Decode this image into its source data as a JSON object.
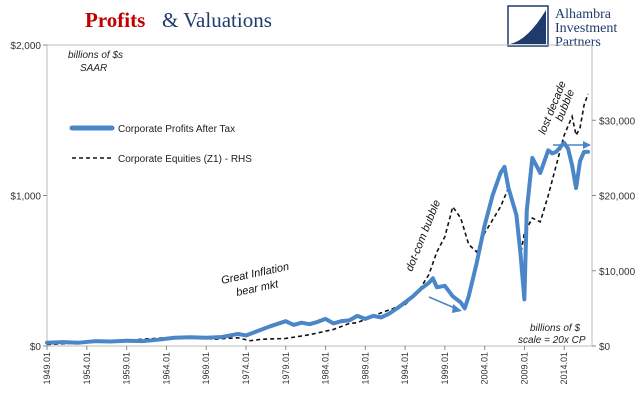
{
  "title": {
    "part1": "Profits",
    "part2": "& Valuations"
  },
  "brand": {
    "line1": "Alhambra",
    "line2": "Investment",
    "line3": "Partners"
  },
  "colors": {
    "profits": "#4a86c8",
    "equities": "#111111",
    "title_red": "#c00000",
    "brand_blue": "#1f3b6e"
  },
  "chart_data": {
    "type": "line",
    "title": "Profits & Valuations",
    "grid": false,
    "legend_position": "left",
    "left_axis": {
      "ticks": [
        "$0",
        "$1,000",
        "$2,000"
      ],
      "ylim": [
        0,
        2000
      ],
      "unit_note": [
        "billions of $s",
        "SAAR"
      ]
    },
    "right_axis": {
      "ticks": [
        "$0",
        "$10,000",
        "$20,000",
        "$30,000"
      ],
      "ylim": [
        0,
        40000
      ],
      "unit_note": [
        "billions of $",
        "scale = 20x CP"
      ]
    },
    "x_tick_labels": [
      "1949.01",
      "1954.01",
      "1959.01",
      "1964.01",
      "1969.01",
      "1974.01",
      "1979.01",
      "1984.01",
      "1989.01",
      "1994.01",
      "1999.01",
      "2004.01",
      "2009.01",
      "2014.01"
    ],
    "xlim": [
      1949,
      2017.5
    ],
    "series": [
      {
        "name": "Corporate Profits After Tax",
        "axis": "left",
        "x": [
          1949,
          1951,
          1953,
          1955,
          1957,
          1959,
          1961,
          1963,
          1965,
          1967,
          1969,
          1971,
          1973,
          1974,
          1975,
          1977,
          1979,
          1980,
          1981,
          1982,
          1983,
          1984,
          1985,
          1986,
          1987,
          1988,
          1989,
          1990,
          1991,
          1992,
          1993,
          1994,
          1995,
          1996,
          1997,
          1997.5,
          1998,
          1999,
          2000,
          2001,
          2001.5,
          2002,
          2003,
          2004,
          2005,
          2006,
          2006.5,
          2007,
          2008,
          2008.5,
          2009,
          2009.3,
          2010,
          2011,
          2012,
          2012.5,
          2013,
          2014,
          2014.5,
          2015,
          2015.5,
          2016,
          2016.5,
          2017
        ],
        "values": [
          22,
          26,
          22,
          32,
          30,
          35,
          32,
          42,
          55,
          58,
          55,
          60,
          80,
          70,
          90,
          130,
          165,
          140,
          155,
          145,
          160,
          180,
          150,
          165,
          170,
          200,
          180,
          200,
          190,
          215,
          250,
          290,
          330,
          380,
          420,
          450,
          390,
          400,
          330,
          290,
          250,
          330,
          550,
          800,
          1000,
          1150,
          1190,
          1050,
          870,
          620,
          310,
          900,
          1250,
          1150,
          1300,
          1280,
          1290,
          1350,
          1310,
          1200,
          1050,
          1230,
          1290,
          1290
        ]
      },
      {
        "name": "Corporate Equities (Z1) - RHS",
        "axis": "right",
        "x": [
          1949,
          1952,
          1955,
          1958,
          1961,
          1964,
          1967,
          1970,
          1973,
          1974.5,
          1976,
          1979,
          1982,
          1985,
          1987,
          1988,
          1990,
          1992,
          1994,
          1995,
          1996,
          1997,
          1998,
          1999,
          2000,
          2001,
          2002,
          2003,
          2004,
          2006,
          2007,
          2008,
          2008.5,
          2009,
          2010,
          2011,
          2012,
          2013,
          2014,
          2015,
          2015.5,
          2016,
          2016.5,
          2017
        ],
        "values": [
          200,
          350,
          500,
          700,
          900,
          1100,
          1200,
          900,
          1100,
          700,
          900,
          1000,
          1500,
          2200,
          3000,
          3100,
          4000,
          4800,
          5500,
          6500,
          7800,
          9500,
          12500,
          14500,
          18500,
          17000,
          13500,
          12500,
          15000,
          18500,
          21000,
          17500,
          12000,
          15000,
          17000,
          16500,
          20000,
          24000,
          28000,
          30500,
          28000,
          29000,
          32000,
          33500
        ]
      }
    ],
    "annotations": [
      {
        "text": "Great Inflation",
        "line2": "bear mkt"
      },
      {
        "text": "dot-com bubble"
      },
      {
        "text": "lost decade",
        "line2": "bubble"
      }
    ]
  }
}
